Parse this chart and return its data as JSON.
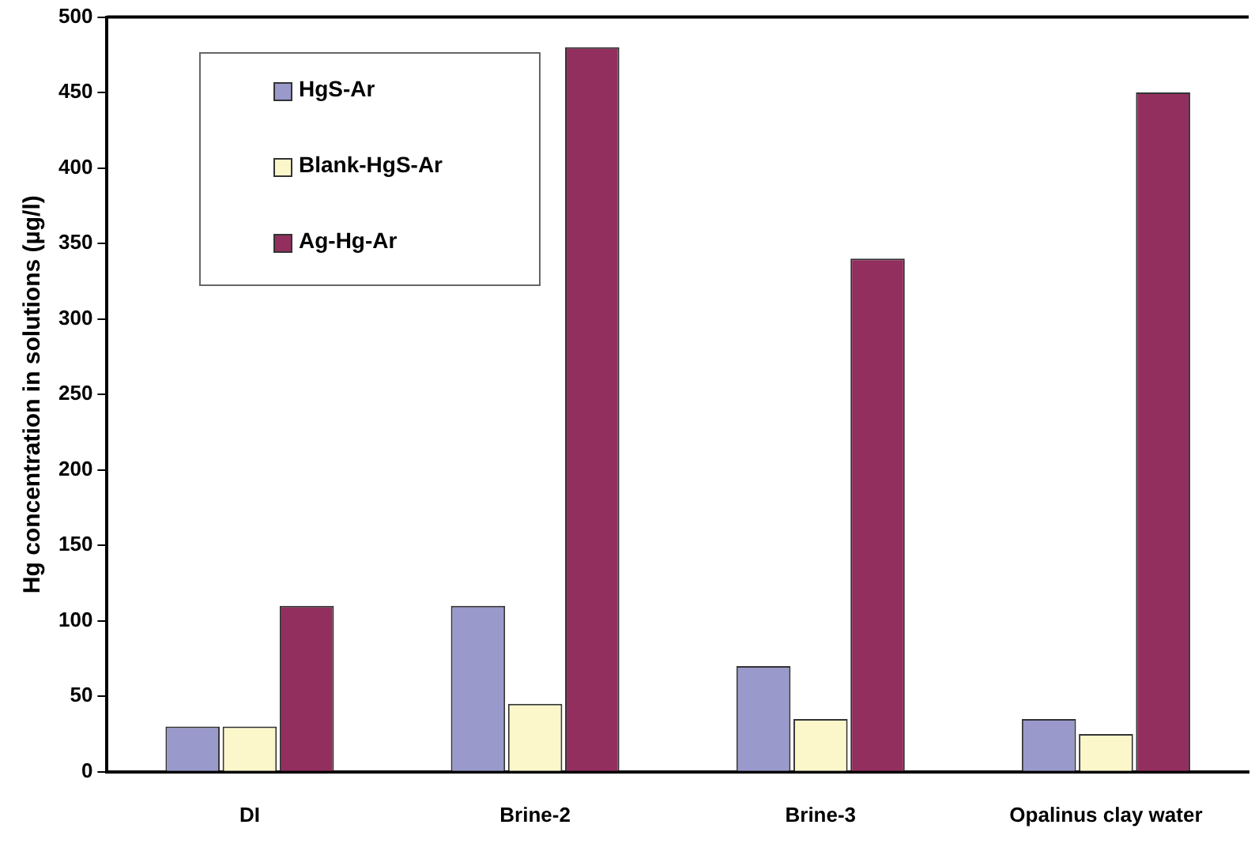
{
  "chart_data": {
    "type": "bar",
    "ylabel": "Hg concentration in solutions (µg/l)",
    "categories": [
      "DI",
      "Brine-2",
      "Brine-3",
      "Opalinus clay water"
    ],
    "series": [
      {
        "name": "HgS-Ar",
        "color": "#9999cc",
        "values": [
          30,
          110,
          70,
          35
        ]
      },
      {
        "name": "Blank-HgS-Ar",
        "color": "#fbf7cb",
        "values": [
          30,
          45,
          35,
          25
        ]
      },
      {
        "name": "Ag-Hg-Ar",
        "color": "#922f5e",
        "values": [
          110,
          480,
          340,
          450
        ]
      }
    ],
    "ylim": [
      0,
      500
    ],
    "yticks": [
      0,
      50,
      100,
      150,
      200,
      250,
      300,
      350,
      400,
      450,
      500
    ],
    "grid": false,
    "legend": "top left"
  }
}
